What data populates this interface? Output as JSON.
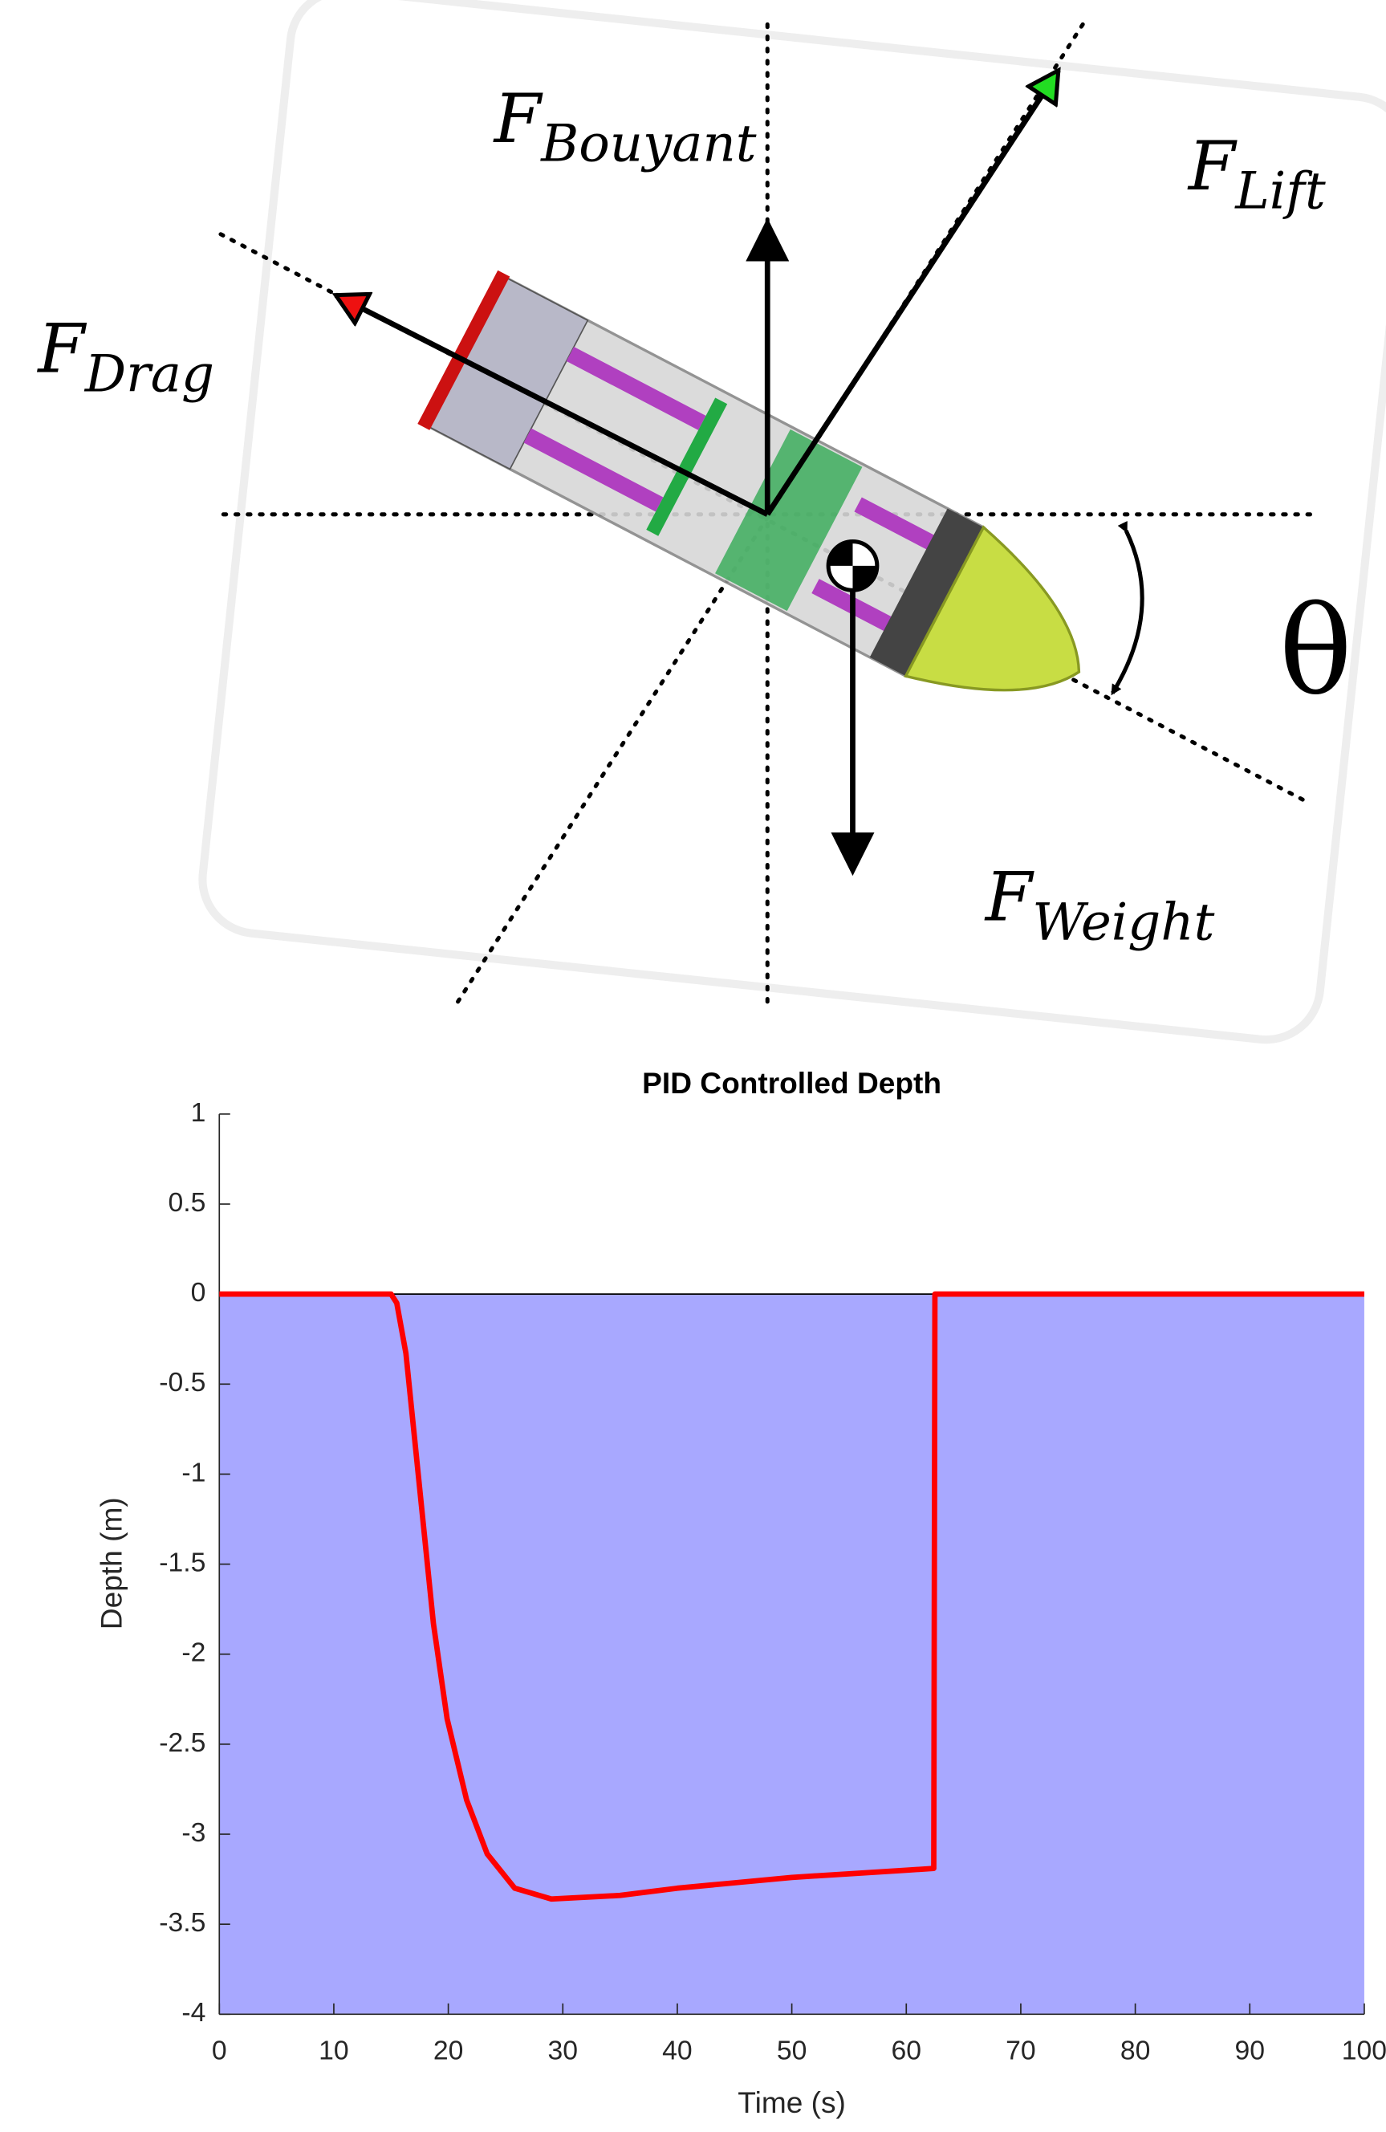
{
  "diagram": {
    "labels": [
      {
        "symbol": "F",
        "subscript": "Bouyant"
      },
      {
        "symbol": "F",
        "subscript": "Lift"
      },
      {
        "symbol": "F",
        "subscript": "Drag"
      },
      {
        "symbol": "F",
        "subscript": "Weight"
      }
    ],
    "angle_label": "θ"
  },
  "chart_data": {
    "type": "line",
    "title": "PID Controlled Depth",
    "xlabel": "Time (s)",
    "ylabel": "Depth (m)",
    "x": [
      0,
      15,
      15.5,
      16.3,
      17.5,
      18.7,
      19.9,
      21.6,
      23.4,
      25.8,
      29,
      35,
      40,
      45,
      50,
      55,
      60,
      62.4,
      62.5,
      100
    ],
    "values": [
      0,
      0,
      -0.05,
      -0.33,
      -1.08,
      -1.83,
      -2.36,
      -2.81,
      -3.11,
      -3.3,
      -3.36,
      -3.34,
      -3.3,
      -3.27,
      -3.24,
      -3.22,
      -3.2,
      -3.19,
      0,
      0
    ],
    "color": "#ff0000",
    "fill_color": "#a8a8ff",
    "xlim": [
      0,
      100
    ],
    "xticks": [
      0,
      10,
      20,
      30,
      40,
      50,
      60,
      70,
      80,
      90,
      100
    ],
    "ylim": [
      -4,
      1
    ],
    "yticks": [
      -4,
      -3.5,
      -3,
      -2.5,
      -2,
      -1.5,
      -1,
      -0.5,
      0,
      0.5,
      1
    ]
  }
}
